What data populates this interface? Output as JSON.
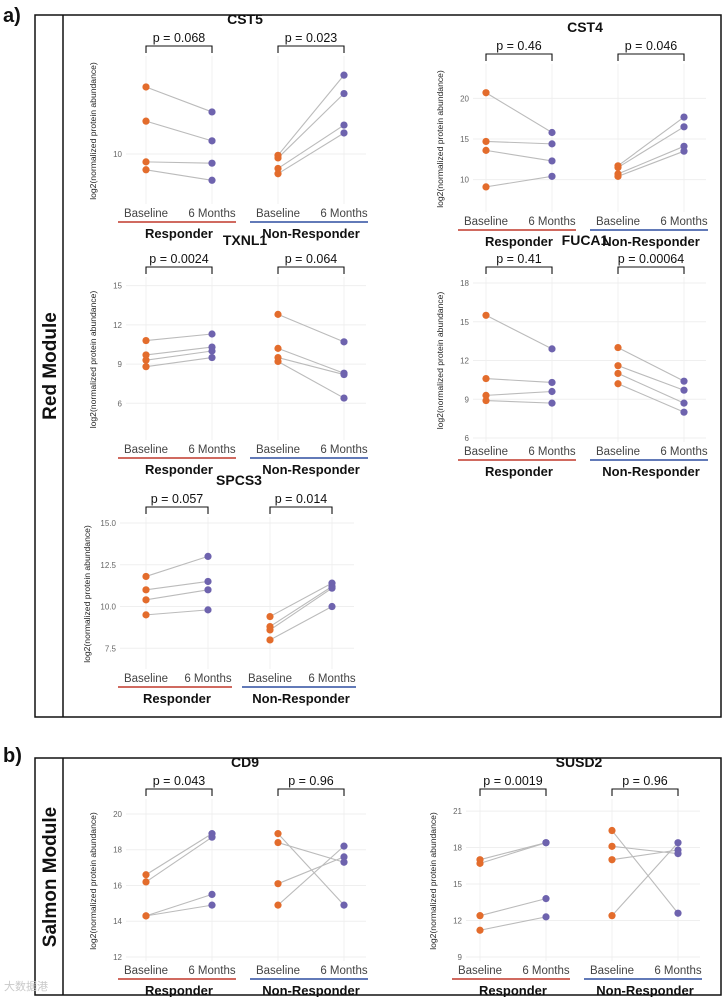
{
  "panel_a": {
    "letter": "a)",
    "module": "Red Module"
  },
  "panel_b": {
    "letter": "b)",
    "module": "Salmon Module"
  },
  "watermark": "大数据港",
  "colors": {
    "baseline": "#E36C2C",
    "six_months": "#6E63AE",
    "responder_line": "#C0392B",
    "non_responder_line": "#2E4FA0",
    "connector": "#BBBBBB"
  },
  "chart_data": [
    {
      "id": "cst5",
      "type": "scatter",
      "title": "CST5",
      "ylabel": "log2(normalized protein abundance)",
      "ylim": [
        6.5,
        17
      ],
      "yticks": [
        10
      ],
      "xticks": [
        "Baseline",
        "6 Months"
      ],
      "groups": [
        "Responder",
        "Non-Responder"
      ],
      "pvalues": [
        "p = 0.068",
        "p = 0.023"
      ],
      "responder": [
        [
          15.1,
          13.2
        ],
        [
          12.5,
          11.0
        ],
        [
          9.4,
          9.3
        ],
        [
          8.8,
          8.0
        ]
      ],
      "non_responder": [
        [
          9.9,
          16.0
        ],
        [
          9.7,
          14.6
        ],
        [
          8.9,
          12.2
        ],
        [
          8.5,
          11.6
        ]
      ]
    },
    {
      "id": "cst4",
      "type": "scatter",
      "title": "CST4",
      "ylabel": "log2(normalized protein abundance)",
      "ylim": [
        6.5,
        23.5
      ],
      "yticks": [
        10,
        15,
        20
      ],
      "xticks": [
        "Baseline",
        "6 Months"
      ],
      "groups": [
        "Responder",
        "Non-Responder"
      ],
      "pvalues": [
        "p = 0.46",
        "p = 0.046"
      ],
      "responder": [
        [
          20.7,
          15.8
        ],
        [
          14.7,
          14.4
        ],
        [
          13.6,
          12.3
        ],
        [
          9.1,
          10.4
        ]
      ],
      "non_responder": [
        [
          11.7,
          17.7
        ],
        [
          11.5,
          16.5
        ],
        [
          10.7,
          14.1
        ],
        [
          10.4,
          13.5
        ]
      ]
    },
    {
      "id": "txnl1",
      "type": "scatter",
      "title": "TXNL1",
      "ylabel": "log2(normalized protein abundance)",
      "ylim": [
        3.5,
        15.2
      ],
      "yticks": [
        6,
        9,
        12,
        15
      ],
      "xticks": [
        "Baseline",
        "6 Months"
      ],
      "groups": [
        "Responder",
        "Non-Responder"
      ],
      "pvalues": [
        "p = 0.0024",
        "p = 0.064"
      ],
      "responder": [
        [
          10.8,
          11.3
        ],
        [
          9.7,
          10.3
        ],
        [
          9.3,
          10.0
        ],
        [
          8.8,
          9.5
        ]
      ],
      "non_responder": [
        [
          12.8,
          10.7
        ],
        [
          10.2,
          8.3
        ],
        [
          9.5,
          8.2
        ],
        [
          9.2,
          6.4
        ]
      ]
    },
    {
      "id": "fuca1",
      "type": "scatter",
      "title": "FUCA1",
      "ylabel": "log2(normalized protein abundance)",
      "ylim": [
        6,
        18
      ],
      "yticks": [
        6,
        9,
        12,
        15,
        18
      ],
      "xticks": [
        "Baseline",
        "6 Months"
      ],
      "groups": [
        "Responder",
        "Non-Responder"
      ],
      "pvalues": [
        "p = 0.41",
        "p = 0.00064"
      ],
      "responder": [
        [
          15.5,
          12.9
        ],
        [
          10.6,
          10.3
        ],
        [
          9.3,
          9.6
        ],
        [
          8.9,
          8.7
        ]
      ],
      "non_responder": [
        [
          13.0,
          10.4
        ],
        [
          11.6,
          9.7
        ],
        [
          11.0,
          8.7
        ],
        [
          10.2,
          8.0
        ]
      ]
    },
    {
      "id": "spcs3",
      "type": "scatter",
      "title": "SPCS3",
      "ylabel": "log2(normalized protein abundance)",
      "ylim": [
        6.5,
        15
      ],
      "yticks": [
        7.5,
        10.0,
        12.5,
        15.0
      ],
      "xticks": [
        "Baseline",
        "6 Months"
      ],
      "groups": [
        "Responder",
        "Non-Responder"
      ],
      "pvalues": [
        "p = 0.057",
        "p = 0.014"
      ],
      "responder": [
        [
          11.8,
          13.0
        ],
        [
          11.0,
          11.5
        ],
        [
          10.4,
          11.0
        ],
        [
          9.5,
          9.8
        ]
      ],
      "non_responder": [
        [
          9.4,
          11.4
        ],
        [
          8.8,
          11.2
        ],
        [
          8.6,
          11.1
        ],
        [
          8.0,
          10.0
        ]
      ]
    },
    {
      "id": "cd9",
      "type": "scatter",
      "title": "CD9",
      "ylabel": "log2(normalized protein abundance)",
      "ylim": [
        12,
        20.5
      ],
      "yticks": [
        12,
        14,
        16,
        18,
        20
      ],
      "xticks": [
        "Baseline",
        "6 Months"
      ],
      "groups": [
        "Responder",
        "Non-Responder"
      ],
      "pvalues": [
        "p = 0.043",
        "p = 0.96"
      ],
      "responder": [
        [
          16.6,
          18.9
        ],
        [
          16.2,
          18.7
        ],
        [
          14.3,
          15.5
        ],
        [
          14.3,
          14.9
        ]
      ],
      "non_responder": [
        [
          18.9,
          14.9
        ],
        [
          18.4,
          17.3
        ],
        [
          16.1,
          17.6
        ],
        [
          14.9,
          18.2
        ]
      ]
    },
    {
      "id": "susd2",
      "type": "scatter",
      "title": "SUSD2",
      "ylabel": "log2(normalized protein abundance)",
      "ylim": [
        9,
        21.5
      ],
      "yticks": [
        9,
        12,
        15,
        18,
        21
      ],
      "xticks": [
        "Baseline",
        "6 Months"
      ],
      "groups": [
        "Responder",
        "Non-Responder"
      ],
      "pvalues": [
        "p = 0.0019",
        "p = 0.96"
      ],
      "responder": [
        [
          17.0,
          18.4
        ],
        [
          16.7,
          18.4
        ],
        [
          12.4,
          13.8
        ],
        [
          11.2,
          12.3
        ]
      ],
      "non_responder": [
        [
          19.4,
          12.6
        ],
        [
          18.1,
          17.5
        ],
        [
          17.0,
          17.8
        ],
        [
          12.4,
          18.4
        ]
      ]
    }
  ]
}
